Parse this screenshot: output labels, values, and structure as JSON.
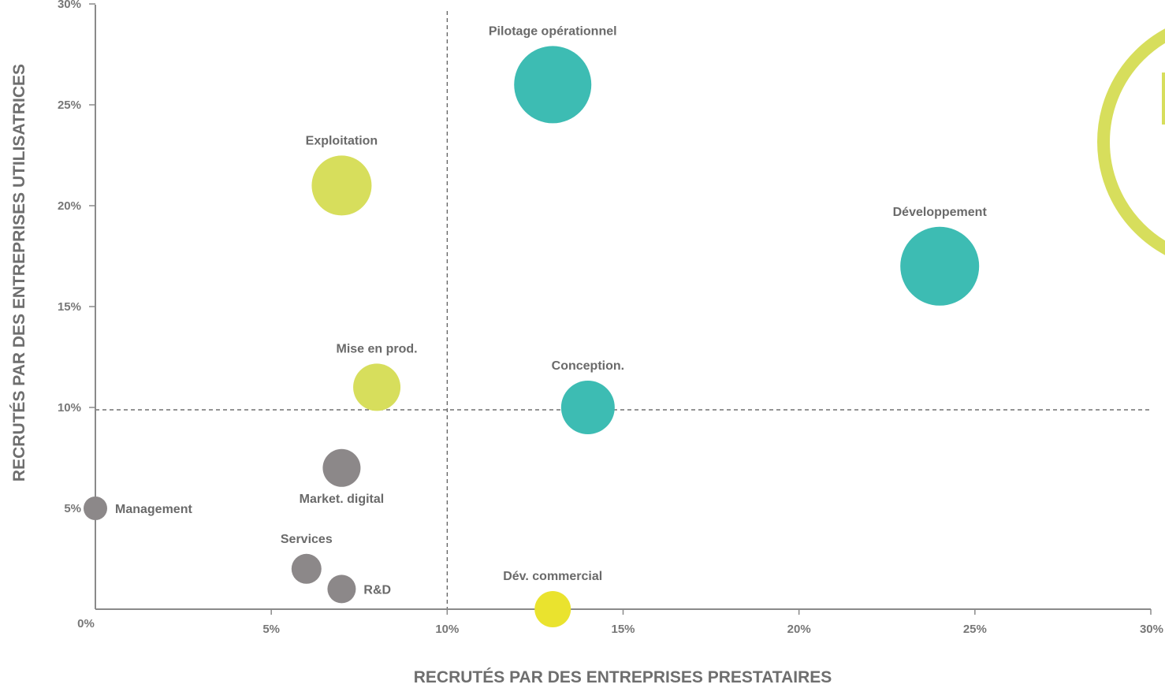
{
  "chart_data": {
    "type": "scatter",
    "subtype": "bubble",
    "title": "",
    "xlabel": "RECRUTÉS PAR DES ENTREPRISES PRESTATAIRES",
    "ylabel": "RECRUTÉS PAR DES ENTREPRISES UTILISATRICES",
    "xlim": [
      0,
      30
    ],
    "ylim": [
      0,
      30
    ],
    "x_ticks": [
      {
        "value": 0,
        "label": "0%"
      },
      {
        "value": 5,
        "label": "5%"
      },
      {
        "value": 10,
        "label": "10%"
      },
      {
        "value": 15,
        "label": "15%"
      },
      {
        "value": 20,
        "label": "20%"
      },
      {
        "value": 25,
        "label": "25%"
      },
      {
        "value": 30,
        "label": "30%"
      }
    ],
    "y_ticks": [
      {
        "value": 5,
        "label": "5%"
      },
      {
        "value": 10,
        "label": "10%"
      },
      {
        "value": 15,
        "label": "15%"
      },
      {
        "value": 20,
        "label": "20%"
      },
      {
        "value": 25,
        "label": "25%"
      },
      {
        "value": 30,
        "label": "30%"
      }
    ],
    "reference_lines": {
      "x": 10,
      "y": 10,
      "style": "dashed"
    },
    "grid": false,
    "legend": "none",
    "colors": {
      "teal": "#3dbcb3",
      "lime": "#d7de5c",
      "yellow": "#eae32e",
      "gray": "#8c8889",
      "axis": "#8a8a8a"
    },
    "points": [
      {
        "label": "Pilotage opérationnel",
        "x": 13,
        "y": 26,
        "size": 49,
        "color": "teal",
        "label_pos": "above"
      },
      {
        "label": "Développement",
        "x": 24,
        "y": 17,
        "size": 50,
        "color": "teal",
        "label_pos": "above"
      },
      {
        "label": "Conception.",
        "x": 14,
        "y": 10,
        "size": 34,
        "color": "teal",
        "label_pos": "above"
      },
      {
        "label": "Exploitation",
        "x": 7,
        "y": 21,
        "size": 38,
        "color": "lime",
        "label_pos": "above"
      },
      {
        "label": "Mise en prod.",
        "x": 8,
        "y": 11,
        "size": 30,
        "color": "lime",
        "label_pos": "above"
      },
      {
        "label": "Dév. commercial",
        "x": 13,
        "y": 0,
        "size": 23,
        "color": "yellow",
        "label_pos": "above"
      },
      {
        "label": "Market. digital",
        "x": 7,
        "y": 7,
        "size": 24,
        "color": "gray",
        "label_pos": "below"
      },
      {
        "label": "Management",
        "x": 0,
        "y": 5,
        "size": 15,
        "color": "gray",
        "label_pos": "right"
      },
      {
        "label": "Services",
        "x": 6,
        "y": 2,
        "size": 19,
        "color": "gray",
        "label_pos": "above"
      },
      {
        "label": "R&D",
        "x": 7,
        "y": 1,
        "size": 18,
        "color": "gray",
        "label_pos": "right"
      }
    ],
    "decorations": [
      {
        "name": "corner-ring",
        "color": "lime"
      }
    ]
  }
}
